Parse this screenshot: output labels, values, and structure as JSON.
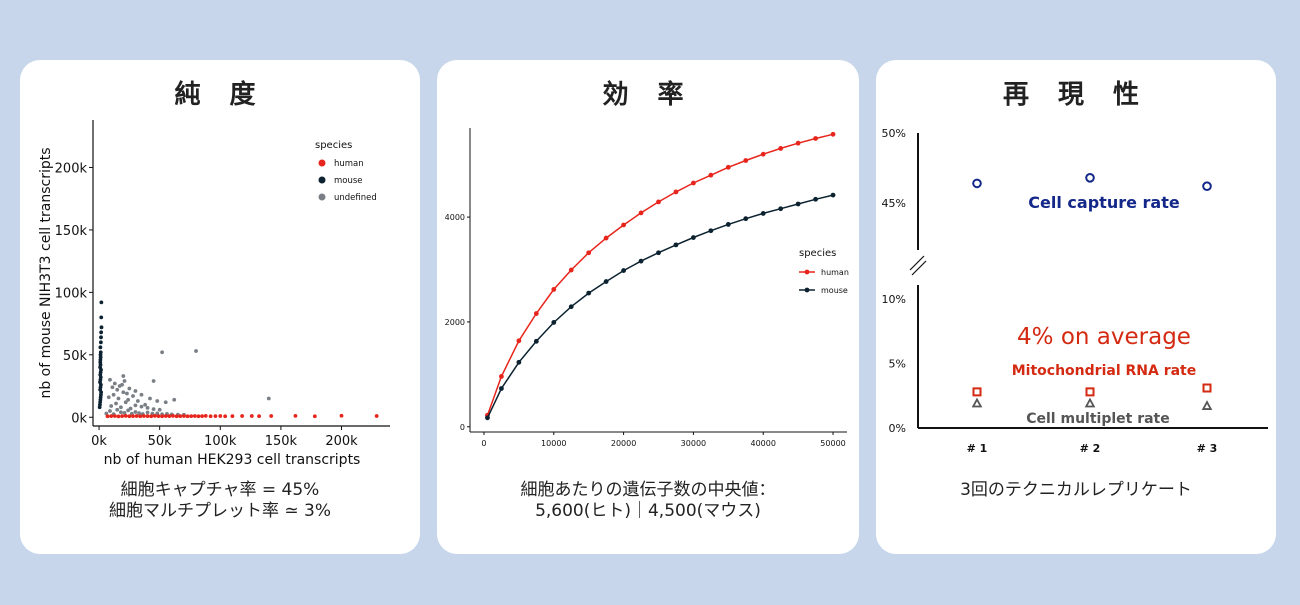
{
  "colors": {
    "background": "#c7d6ea",
    "human": "#e8251c",
    "mouse": "#0c2230",
    "undefined": "#7a7f85",
    "capture": "#14288a",
    "mito": "#d42a12",
    "multiplet": "#555555"
  },
  "panels": [
    {
      "title": "純 度",
      "caption_lines": [
        "細胞キャプチャ率 = 45%",
        "細胞マルチプレット率 ≃ 3%"
      ]
    },
    {
      "title": "効 率",
      "caption_lines": [
        "細胞あたりの遺伝子数の中央値：",
        "5,600(ヒト)｜4,500(マウス)"
      ]
    },
    {
      "title": "再 現 性",
      "caption_lines": [
        "3回のテクニカルレプリケート"
      ]
    }
  ],
  "chart_data": [
    {
      "type": "scatter",
      "xlabel": "nb of human HEK293 cell transcripts",
      "ylabel": "nb of mouse NIH3T3 cell transcripts",
      "xlim": [
        -5000,
        240000
      ],
      "ylim": [
        -7000,
        238000
      ],
      "x_ticks": [
        0,
        50000,
        100000,
        150000,
        200000
      ],
      "x_tick_labels": [
        "0k",
        "50k",
        "100k",
        "150k",
        "200k"
      ],
      "y_ticks": [
        0,
        50000,
        100000,
        150000,
        200000
      ],
      "y_tick_labels": [
        "0k",
        "50k",
        "100k",
        "150k",
        "200k"
      ],
      "grid": false,
      "legend": {
        "title": "species",
        "position": "top-right"
      },
      "series": [
        {
          "name": "human",
          "x": [
            7000,
            10000,
            13000,
            16000,
            19000,
            22000,
            25000,
            28000,
            31000,
            34000,
            37000,
            40000,
            43000,
            46000,
            49000,
            52000,
            55000,
            58000,
            61000,
            64000,
            67000,
            70000,
            73000,
            76000,
            79000,
            82000,
            85000,
            88000,
            92000,
            96000,
            100000,
            104000,
            110000,
            118000,
            126000,
            132000,
            142000,
            162000,
            178000,
            200000,
            229000
          ],
          "y": [
            800,
            900,
            1000,
            700,
            900,
            1100,
            800,
            900,
            1000,
            800,
            1000,
            900,
            800,
            1100,
            900,
            800,
            1000,
            900,
            1100,
            800,
            900,
            1000,
            800,
            900,
            1000,
            800,
            900,
            1100,
            800,
            900,
            1000,
            800,
            900,
            1000,
            1000,
            900,
            1000,
            1100,
            800,
            1200,
            1000
          ]
        },
        {
          "name": "mouse",
          "x": [
            500,
            700,
            900,
            1100,
            1300,
            1500,
            1700,
            900,
            1200,
            1500,
            800,
            1100,
            1400,
            1000,
            1300,
            1600,
            900,
            1200,
            1000,
            1100,
            1300,
            1200,
            1400,
            1100,
            1500,
            1600,
            1700,
            2000,
            1800,
            1900
          ],
          "y": [
            8000,
            10000,
            12000,
            14000,
            16000,
            18000,
            20000,
            22000,
            24000,
            26000,
            28000,
            30000,
            32000,
            34000,
            36000,
            38000,
            40000,
            42000,
            44000,
            46000,
            48000,
            50000,
            52000,
            56000,
            60000,
            64000,
            68000,
            72000,
            80000,
            92000
          ]
        },
        {
          "name": "undefined",
          "x": [
            6000,
            9000,
            12000,
            15000,
            18000,
            21000,
            24000,
            27000,
            30000,
            33000,
            36000,
            40000,
            44000,
            48000,
            52000,
            56000,
            60000,
            65000,
            70000,
            10000,
            14000,
            18000,
            22000,
            26000,
            30000,
            35000,
            40000,
            45000,
            50000,
            8000,
            12000,
            16000,
            20000,
            24000,
            28000,
            32000,
            38000,
            11000,
            15000,
            19000,
            23000,
            9000,
            13000,
            17000,
            21000,
            25000,
            30000,
            35000,
            42000,
            48000,
            55000,
            20000,
            52000,
            80000,
            140000,
            45000,
            62000
          ],
          "y": [
            3000,
            5000,
            2500,
            6000,
            4000,
            3500,
            5500,
            2800,
            4200,
            3300,
            2600,
            3800,
            2900,
            3100,
            2400,
            2700,
            2300,
            2100,
            2000,
            9000,
            11000,
            8000,
            12000,
            7000,
            9500,
            8500,
            7500,
            6500,
            6000,
            16000,
            18000,
            15000,
            20000,
            14000,
            17000,
            13000,
            10000,
            24000,
            22000,
            26000,
            19000,
            30000,
            27000,
            25000,
            29000,
            23000,
            21000,
            18000,
            15000,
            13000,
            12000,
            33000,
            52000,
            53000,
            15000,
            29000,
            14000
          ]
        }
      ]
    },
    {
      "type": "line",
      "xlim": [
        -2000,
        52000
      ],
      "ylim": [
        -100,
        5700
      ],
      "x_ticks": [
        0,
        10000,
        20000,
        30000,
        40000,
        50000
      ],
      "x_tick_labels": [
        "0",
        "10000",
        "20000",
        "30000",
        "40000",
        "50000"
      ],
      "y_ticks": [
        0,
        2000,
        4000
      ],
      "y_tick_labels": [
        "0",
        "2000",
        "4000"
      ],
      "grid": false,
      "legend": {
        "title": "species",
        "position": "right"
      },
      "x": [
        500,
        2500,
        5000,
        7500,
        10000,
        12500,
        15000,
        17500,
        20000,
        22500,
        25000,
        27500,
        30000,
        32500,
        35000,
        37500,
        40000,
        42500,
        45000,
        47500,
        50000
      ],
      "series": [
        {
          "name": "human",
          "values": [
            220,
            960,
            1640,
            2160,
            2620,
            2990,
            3320,
            3600,
            3850,
            4080,
            4290,
            4480,
            4650,
            4800,
            4950,
            5080,
            5200,
            5310,
            5410,
            5500,
            5580
          ]
        },
        {
          "name": "mouse",
          "values": [
            170,
            730,
            1230,
            1630,
            1990,
            2290,
            2550,
            2770,
            2980,
            3160,
            3320,
            3470,
            3610,
            3740,
            3860,
            3970,
            4070,
            4160,
            4250,
            4340,
            4420
          ]
        }
      ]
    },
    {
      "type": "scatter",
      "categories": [
        "# 1",
        "# 2",
        "# 3"
      ],
      "y_ticks_upper": [
        45,
        50
      ],
      "y_tick_labels_upper": [
        "45%",
        "50%"
      ],
      "y_ticks_lower": [
        0,
        5,
        10
      ],
      "y_tick_labels_lower": [
        "0%",
        "5%",
        "10%"
      ],
      "ylim_upper": [
        40,
        50
      ],
      "ylim_lower": [
        0,
        10
      ],
      "axis_break": true,
      "grid": false,
      "series": [
        {
          "name": "Cell capture rate",
          "values": [
            46.4,
            46.8,
            46.2
          ]
        },
        {
          "name": "Mitochondrial RNA rate",
          "values": [
            2.8,
            2.8,
            3.1
          ]
        },
        {
          "name": "Cell multiplet rate",
          "values": [
            1.9,
            1.9,
            1.7
          ]
        }
      ],
      "annotation": "4% on average"
    }
  ]
}
